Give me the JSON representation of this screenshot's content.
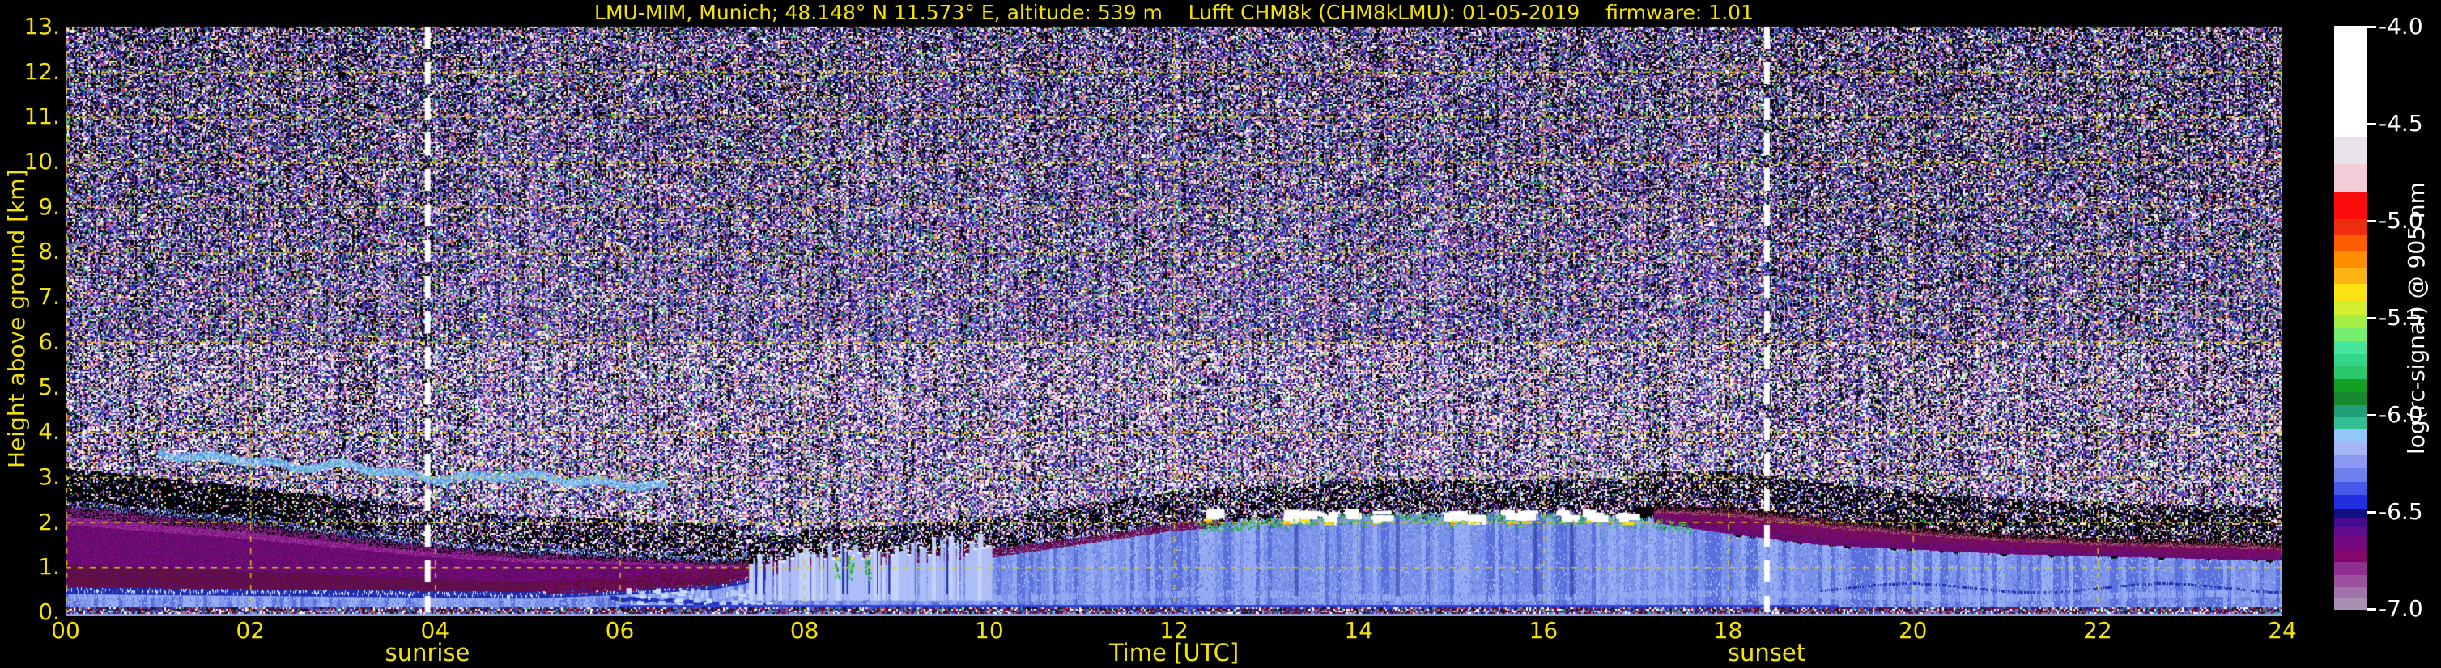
{
  "title": "LMU-MIM, Munich; 48.148° N 11.573° E, altitude: 539 m    Lufft CHM8k (CHM8kLMU): 01-05-2019    firmware: 1.01",
  "axes": {
    "xlabel": "Time [UTC]",
    "ylabel": "Height above ground [km]",
    "x_ticks": [
      "00",
      "02",
      "04",
      "06",
      "08",
      "10",
      "12",
      "14",
      "16",
      "18",
      "20",
      "22",
      "24"
    ],
    "y_ticks": [
      "0.",
      "1.",
      "2.",
      "3.",
      "4.",
      "5.",
      "6.",
      "7.",
      "8.",
      "9.",
      "10.",
      "11.",
      "12.",
      "13."
    ],
    "sunrise_label": "sunrise",
    "sunset_label": "sunset",
    "tick_color": "#f2e205",
    "grid_color": "#d9c91c"
  },
  "colorbar": {
    "label": "log(rc-signal) @ 905 nm",
    "tick_labels": [
      "-4.0",
      "-4.5",
      "-5.0",
      "-5.5",
      "-6.0",
      "-6.5",
      "-7.0"
    ],
    "text_color": "#ffffff",
    "segments": [
      [
        "#ffffff",
        0.2
      ],
      [
        "#e9e2e9",
        0.05
      ],
      [
        "#f2ccd7",
        0.05
      ],
      [
        "#fb0d0d",
        0.05
      ],
      [
        "#ec2e0f",
        0.027
      ],
      [
        "#fe5c00",
        0.03
      ],
      [
        "#ff8d00",
        0.03
      ],
      [
        "#fcb414",
        0.03
      ],
      [
        "#ffe214",
        0.03
      ],
      [
        "#d3ee31",
        0.027
      ],
      [
        "#a5ef44",
        0.023
      ],
      [
        "#78ee71",
        0.023
      ],
      [
        "#46e59c",
        0.023
      ],
      [
        "#32d58b",
        0.023
      ],
      [
        "#2bc76b",
        0.023
      ],
      [
        "#149f24",
        0.023
      ],
      [
        "#178a31",
        0.023
      ],
      [
        "#1f9e79",
        0.023
      ],
      [
        "#2fbf92",
        0.02
      ],
      [
        "#93c7f8",
        0.024
      ],
      [
        "#a5b7f6",
        0.024
      ],
      [
        "#8b99f2",
        0.024
      ],
      [
        "#6f7fec",
        0.024
      ],
      [
        "#4759e8",
        0.024
      ],
      [
        "#1f2fe0",
        0.024
      ],
      [
        "#131086",
        0.017
      ],
      [
        "#460a90",
        0.017
      ],
      [
        "#5f0b8b",
        0.017
      ],
      [
        "#750980",
        0.023
      ],
      [
        "#82086c",
        0.023
      ],
      [
        "#8f2f8f",
        0.023
      ],
      [
        "#9c519f",
        0.023
      ],
      [
        "#a172a9",
        0.02
      ],
      [
        "#a98fb4",
        0.02
      ]
    ]
  },
  "chart_data": {
    "type": "heatmap",
    "title": "LMU-MIM, Munich; 48.148° N 11.573° E, altitude: 539 m    Lufft CHM8k (CHM8kLMU): 01-05-2019    firmware: 1.01",
    "xlabel": "Time [UTC]",
    "ylabel": "Height above ground [km]",
    "colorbar_label": "log(rc-signal) @ 905 nm",
    "x_range_utc": [
      0,
      24
    ],
    "x_tick_step_h": 2,
    "y_range_km": [
      0,
      13
    ],
    "y_tick_step_km": 1,
    "colorbar_range": [
      -4.0,
      -7.0
    ],
    "colorbar_tick_values": [
      -4.0,
      -4.5,
      -5.0,
      -5.5,
      -6.0,
      -6.5,
      -7.0
    ],
    "grid": true,
    "sunrise_utc": 3.92,
    "sunset_utc": 18.42,
    "mixed_layer_top_km_by_hour": [
      0.52,
      0.5,
      0.48,
      0.46,
      0.44,
      0.42,
      0.5,
      0.62,
      1.0,
      1.1,
      1.25,
      1.55,
      1.85,
      2.0,
      2.1,
      2.1,
      2.1,
      2.05,
      1.75,
      1.5,
      1.4,
      1.3,
      1.25,
      1.2,
      1.15
    ],
    "residual_layer_top_km_hours_0_7": [
      2.35,
      2.15,
      1.95,
      1.7,
      1.45,
      1.3,
      1.22,
      1.1
    ],
    "evening_layer_top_km_hours_17_24": [
      2.3,
      2.3,
      2.05,
      1.85,
      1.7,
      1.6,
      1.55,
      1.5
    ],
    "morning_cap_thickness_km_hours_5_13": [
      0.2,
      0.28,
      0.3,
      0.25,
      0.2,
      0.15,
      0.1,
      0.12,
      0.12
    ],
    "aerosol_streak": {
      "t_start": 1.0,
      "t_end": 6.5,
      "step_h": 0.5,
      "km": [
        3.52,
        3.45,
        3.4,
        3.22,
        3.3,
        3.12,
        2.98,
        3.02,
        3.06,
        2.92,
        2.86,
        2.8
      ]
    },
    "cloud_times_utc": [
      12.35,
      13.2,
      13.38,
      13.62,
      13.92,
      14.15,
      14.98,
      15.22,
      15.6,
      15.78,
      16.2,
      16.45,
      16.85
    ],
    "cloud_base_km": 2.0,
    "plume_period_utc": [
      7.4,
      10.0
    ],
    "green_band_period_utc": [
      12.3,
      17.6
    ],
    "morning_green_times_utc": [
      8.35,
      8.5,
      8.68
    ],
    "downdraft_gap_times_utc": [
      13.32,
      14.42,
      15.9,
      16.3
    ],
    "colors": {
      "background": "#000000",
      "bl_base": "#7b92ea",
      "bl_light": "#93aaf2",
      "bl_lighter": "#a9bcf6",
      "bl_dark": "#5a70dc",
      "bl_white": "#dde7fc",
      "navy": "#1d2cae",
      "bright_blue": "#2f41d8",
      "purple_core": "#7c0a80",
      "purple_dark": "#570d62",
      "maroon": "#6b1038",
      "magenta": "#983898",
      "pink_fringe": "#b05c88",
      "green": "#2fae4e",
      "green_light": "#63d66d",
      "green_dark": "#127a2e",
      "teal": "#27a07c",
      "cloud_white": "#ffffff",
      "cloud_yellow": "#ffe013",
      "cloud_orange": "#ff9100",
      "grid": "#d9c91c",
      "sun_line": "#ffffff",
      "noise_palette": [
        [
          "#ffffff",
          0.13
        ],
        [
          "#efc9e2",
          0.09
        ],
        [
          "#c79ae0",
          0.07
        ],
        [
          "#9a67d5",
          0.1
        ],
        [
          "#6a3fae",
          0.13
        ],
        [
          "#472a90",
          0.12
        ],
        [
          "#3a56d8",
          0.09
        ],
        [
          "#64c8ea",
          0.035
        ],
        [
          "#41c863",
          0.05
        ],
        [
          "#1f7a36",
          0.04
        ],
        [
          "#e8dd3b",
          0.035
        ],
        [
          "#dd4444",
          0.035
        ],
        [
          "#ef8fb4",
          0.06
        ],
        [
          "#2222aa",
          0.09
        ]
      ],
      "bottom_palette": [
        [
          "#6b1038",
          0.3
        ],
        [
          "#ffffff",
          0.15
        ],
        [
          "#a86a80",
          0.15
        ],
        [
          "#3a50cc",
          0.15
        ],
        [
          "#20b0b0",
          0.05
        ],
        [
          "#111111",
          0.2
        ]
      ]
    }
  }
}
